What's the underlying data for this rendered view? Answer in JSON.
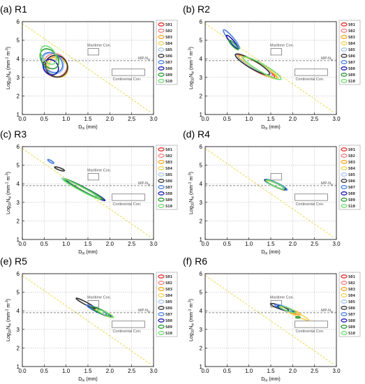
{
  "chart_data": [
    {
      "title": "(a) R1",
      "type": "scatter",
      "xlabel": "D",
      "xlabel_sub": "m",
      "xlabel_unit": "(mm)",
      "ylabel": "Log",
      "ylabel_sub": "10",
      "ylabel_n": "N",
      "ylabel_nsub": "w",
      "ylabel_unit": "(mm",
      "ylabel_exp1": "-1",
      "ylabel_unit2": " m",
      "ylabel_exp2": "-3",
      "ylabel_close": ")",
      "xlim": [
        0,
        3
      ],
      "ylim": [
        1,
        6
      ],
      "xticks": [
        "0.0",
        "0.5",
        "1.0",
        "1.5",
        "2.0",
        "2.5",
        "3.0"
      ],
      "yticks": [
        "1",
        "2",
        "3",
        "4",
        "5",
        "6"
      ],
      "grid": true,
      "legend": "right",
      "mp_line": {
        "y": 3.9,
        "label": "MP-N",
        "label_sub": "w"
      },
      "maritime": {
        "x0": 1.5,
        "x1": 1.75,
        "y0": 4.2,
        "y1": 4.55,
        "label": "Maritime Con."
      },
      "continental": {
        "x0": 2.05,
        "x1": 2.8,
        "y0": 3.1,
        "y1": 3.45,
        "label": "Continental Con."
      },
      "yellow_line": {
        "x0": 0.0,
        "y0": 5.9,
        "x1": 2.95,
        "y1": 1.1
      },
      "ellipses": [
        {
          "series": "S01",
          "cx": 0.78,
          "cy": 3.6,
          "rx": 0.24,
          "ry": 0.62,
          "angle": -55
        },
        {
          "series": "S02",
          "cx": 0.75,
          "cy": 3.65,
          "rx": 0.26,
          "ry": 0.65,
          "angle": -55
        },
        {
          "series": "S03",
          "cx": 0.8,
          "cy": 3.55,
          "rx": 0.22,
          "ry": 0.6,
          "angle": -55
        },
        {
          "series": "S04",
          "cx": 0.82,
          "cy": 3.5,
          "rx": 0.2,
          "ry": 0.55,
          "angle": -55
        },
        {
          "series": "S05",
          "cx": 0.7,
          "cy": 3.75,
          "rx": 0.22,
          "ry": 0.62,
          "angle": -50
        },
        {
          "series": "S06",
          "cx": 0.78,
          "cy": 3.6,
          "rx": 0.24,
          "ry": 0.62,
          "angle": -55
        },
        {
          "series": "S07",
          "cx": 0.68,
          "cy": 3.8,
          "rx": 0.2,
          "ry": 0.62,
          "angle": -50
        },
        {
          "series": "S08",
          "cx": 0.65,
          "cy": 3.55,
          "rx": 0.16,
          "ry": 0.45,
          "angle": -45
        },
        {
          "series": "S09",
          "cx": 0.62,
          "cy": 4.0,
          "rx": 0.18,
          "ry": 0.6,
          "angle": -40
        },
        {
          "series": "S10",
          "cx": 0.6,
          "cy": 4.2,
          "rx": 0.15,
          "ry": 0.55,
          "angle": -35
        }
      ]
    },
    {
      "title": "(b) R2",
      "type": "scatter",
      "xlabel": "D",
      "xlabel_sub": "m",
      "xlabel_unit": "(mm)",
      "ylabel": "Log",
      "ylabel_sub": "10",
      "ylabel_n": "N",
      "ylabel_nsub": "w",
      "ylabel_unit": "(mm",
      "ylabel_exp1": "-1",
      "ylabel_unit2": " m",
      "ylabel_exp2": "-3",
      "ylabel_close": ")",
      "xlim": [
        0,
        3
      ],
      "ylim": [
        1,
        6
      ],
      "xticks": [
        "0.0",
        "0.5",
        "1.0",
        "1.5",
        "2.0",
        "2.5",
        "3.0"
      ],
      "yticks": [
        "1",
        "2",
        "3",
        "4",
        "5",
        "6"
      ],
      "grid": true,
      "legend": "right",
      "mp_line": {
        "y": 3.9,
        "label": "MP-N",
        "label_sub": "w"
      },
      "maritime": {
        "x0": 1.5,
        "x1": 1.75,
        "y0": 4.2,
        "y1": 4.55,
        "label": "Maritime Con."
      },
      "continental": {
        "x0": 2.05,
        "x1": 2.8,
        "y0": 3.1,
        "y1": 3.45,
        "label": "Continental Con."
      },
      "yellow_line": {
        "x0": 0.0,
        "y0": 5.9,
        "x1": 2.95,
        "y1": 1.1
      },
      "ellipses": [
        {
          "series": "S01",
          "cx": 1.15,
          "cy": 3.6,
          "rx": 0.5,
          "ry": 0.22,
          "angle": 30
        },
        {
          "series": "S02",
          "cx": 1.12,
          "cy": 3.65,
          "rx": 0.48,
          "ry": 0.22,
          "angle": 30
        },
        {
          "series": "S03",
          "cx": 1.2,
          "cy": 3.55,
          "rx": 0.5,
          "ry": 0.2,
          "angle": 30
        },
        {
          "series": "S04",
          "cx": 1.25,
          "cy": 3.5,
          "rx": 0.48,
          "ry": 0.2,
          "angle": 30
        },
        {
          "series": "S05",
          "cx": 1.1,
          "cy": 3.7,
          "rx": 0.45,
          "ry": 0.2,
          "angle": 30
        },
        {
          "series": "S06",
          "cx": 1.08,
          "cy": 3.7,
          "rx": 0.45,
          "ry": 0.22,
          "angle": 30
        },
        {
          "series": "S07",
          "cx": 0.6,
          "cy": 5.05,
          "rx": 0.28,
          "ry": 0.13,
          "angle": 50
        },
        {
          "series": "S08",
          "cx": 0.62,
          "cy": 4.9,
          "rx": 0.2,
          "ry": 0.1,
          "angle": 50
        },
        {
          "series": "S09",
          "cx": 0.65,
          "cy": 4.75,
          "rx": 0.15,
          "ry": 0.08,
          "angle": 45
        },
        {
          "series": "S10",
          "cx": 1.3,
          "cy": 3.5,
          "rx": 0.5,
          "ry": 0.2,
          "angle": 30
        }
      ]
    },
    {
      "title": "(c) R3",
      "type": "scatter",
      "xlabel": "D",
      "xlabel_sub": "m",
      "xlabel_unit": "(mm)",
      "ylabel": "Log",
      "ylabel_sub": "10",
      "ylabel_n": "N",
      "ylabel_nsub": "w",
      "ylabel_unit": "(mm",
      "ylabel_exp1": "-1",
      "ylabel_unit2": " m",
      "ylabel_exp2": "-3",
      "ylabel_close": ")",
      "xlim": [
        0,
        3
      ],
      "ylim": [
        1,
        6
      ],
      "xticks": [
        "0.0",
        "0.5",
        "1.0",
        "1.5",
        "2.0",
        "2.5",
        "3.0"
      ],
      "yticks": [
        "1",
        "2",
        "3",
        "4",
        "5",
        "6"
      ],
      "grid": true,
      "legend": "right",
      "mp_line": {
        "y": 3.9,
        "label": "MP-N",
        "label_sub": "w"
      },
      "maritime": {
        "x0": 1.5,
        "x1": 1.75,
        "y0": 4.2,
        "y1": 4.55,
        "label": "Maritime Con."
      },
      "continental": {
        "x0": 2.05,
        "x1": 2.8,
        "y0": 3.1,
        "y1": 3.45,
        "label": "Continental Con."
      },
      "yellow_line": {
        "x0": 0.0,
        "y0": 5.9,
        "x1": 2.95,
        "y1": 1.1
      },
      "ellipses": [
        {
          "series": "S01",
          "cx": 1.4,
          "cy": 3.7,
          "rx": 0.5,
          "ry": 0.1,
          "angle": 28
        },
        {
          "series": "S02",
          "cx": 1.38,
          "cy": 3.72,
          "rx": 0.5,
          "ry": 0.11,
          "angle": 28
        },
        {
          "series": "S03",
          "cx": 1.42,
          "cy": 3.68,
          "rx": 0.48,
          "ry": 0.1,
          "angle": 28
        },
        {
          "series": "S04",
          "cx": 1.35,
          "cy": 3.75,
          "rx": 0.48,
          "ry": 0.1,
          "angle": 28
        },
        {
          "series": "S05",
          "cx": 1.3,
          "cy": 3.8,
          "rx": 0.45,
          "ry": 0.1,
          "angle": 28
        },
        {
          "series": "S06",
          "cx": 0.85,
          "cy": 4.8,
          "rx": 0.12,
          "ry": 0.06,
          "angle": 20
        },
        {
          "series": "S07",
          "cx": 0.65,
          "cy": 5.2,
          "rx": 0.08,
          "ry": 0.05,
          "angle": 30
        },
        {
          "series": "S08",
          "cx": 1.45,
          "cy": 3.65,
          "rx": 0.5,
          "ry": 0.1,
          "angle": 28
        },
        {
          "series": "S09",
          "cx": 1.4,
          "cy": 3.7,
          "rx": 0.5,
          "ry": 0.1,
          "angle": 28
        },
        {
          "series": "S10",
          "cx": 1.35,
          "cy": 3.72,
          "rx": 0.48,
          "ry": 0.1,
          "angle": 28
        }
      ]
    },
    {
      "title": "(d) R4",
      "type": "scatter",
      "xlabel": "D",
      "xlabel_sub": "m",
      "xlabel_unit": "(mm)",
      "ylabel": "Log",
      "ylabel_sub": "10",
      "ylabel_n": "N",
      "ylabel_nsub": "w",
      "ylabel_unit": "(mm",
      "ylabel_exp1": "-1",
      "ylabel_unit2": " m",
      "ylabel_exp2": "-3",
      "ylabel_close": ")",
      "xlim": [
        0,
        3
      ],
      "ylim": [
        1,
        6
      ],
      "xticks": [
        "0.0",
        "0.5",
        "1.0",
        "1.5",
        "2.0",
        "2.5",
        "3.0"
      ],
      "yticks": [
        "1",
        "2",
        "3",
        "4",
        "5",
        "6"
      ],
      "grid": true,
      "legend": "right",
      "mp_line": {
        "y": 3.9,
        "label": "MP-N",
        "label_sub": "w"
      },
      "maritime": {
        "x0": 1.5,
        "x1": 1.75,
        "y0": 4.2,
        "y1": 4.55,
        "label": ""
      },
      "continental": {
        "x0": 2.05,
        "x1": 2.8,
        "y0": 3.1,
        "y1": 3.45,
        "label": "Continental Con."
      },
      "yellow_line": {
        "x0": 0.0,
        "y0": 5.9,
        "x1": 2.95,
        "y1": 1.1
      },
      "ellipses": [
        {
          "series": "S01",
          "cx": 1.6,
          "cy": 3.95,
          "rx": 0.25,
          "ry": 0.1,
          "angle": 25
        },
        {
          "series": "S02",
          "cx": 1.62,
          "cy": 3.93,
          "rx": 0.25,
          "ry": 0.1,
          "angle": 25
        },
        {
          "series": "S03",
          "cx": 1.6,
          "cy": 3.95,
          "rx": 0.24,
          "ry": 0.1,
          "angle": 25
        },
        {
          "series": "S04",
          "cx": 1.64,
          "cy": 3.9,
          "rx": 0.24,
          "ry": 0.1,
          "angle": 25
        },
        {
          "series": "S05",
          "cx": 1.58,
          "cy": 3.97,
          "rx": 0.23,
          "ry": 0.1,
          "angle": 25
        },
        {
          "series": "S06",
          "cx": 1.6,
          "cy": 3.95,
          "rx": 0.27,
          "ry": 0.1,
          "angle": 25
        },
        {
          "series": "S07",
          "cx": 1.62,
          "cy": 3.95,
          "rx": 0.28,
          "ry": 0.11,
          "angle": 25
        },
        {
          "series": "S08",
          "cx": 1.6,
          "cy": 3.95,
          "rx": 0.25,
          "ry": 0.1,
          "angle": 25
        },
        {
          "series": "S09",
          "cx": 1.6,
          "cy": 3.96,
          "rx": 0.24,
          "ry": 0.1,
          "angle": 25
        },
        {
          "series": "S10",
          "cx": 1.6,
          "cy": 3.95,
          "rx": 0.23,
          "ry": 0.1,
          "angle": 25
        }
      ]
    },
    {
      "title": "(e) R5",
      "type": "scatter",
      "xlabel": "D",
      "xlabel_sub": "m",
      "xlabel_unit": "(mm)",
      "ylabel": "Log",
      "ylabel_sub": "10",
      "ylabel_n": "N",
      "ylabel_nsub": "w",
      "ylabel_unit": "(mm",
      "ylabel_exp1": "-1",
      "ylabel_unit2": " m",
      "ylabel_exp2": "-3",
      "ylabel_close": ")",
      "xlim": [
        0,
        3
      ],
      "ylim": [
        1,
        6
      ],
      "xticks": [
        "0.0",
        "0.5",
        "1.0",
        "1.5",
        "2.0",
        "2.5",
        "3.0"
      ],
      "yticks": [
        "1",
        "2",
        "3",
        "4",
        "5",
        "6"
      ],
      "grid": true,
      "legend": "right",
      "mp_line": {
        "y": 3.9,
        "label": "MP-N",
        "label_sub": "w"
      },
      "maritime": {
        "x0": 1.5,
        "x1": 1.75,
        "y0": 4.2,
        "y1": 4.55,
        "label": "Maritime Con."
      },
      "continental": {
        "x0": 2.05,
        "x1": 2.8,
        "y0": 3.1,
        "y1": 3.45,
        "label": "Continental Con."
      },
      "yellow_line": {
        "x0": 0.0,
        "y0": 5.9,
        "x1": 2.95,
        "y1": 1.1
      },
      "ellipses": [
        {
          "series": "S01",
          "cx": 1.8,
          "cy": 3.95,
          "rx": 0.25,
          "ry": 0.1,
          "angle": 25
        },
        {
          "series": "S02",
          "cx": 1.82,
          "cy": 3.93,
          "rx": 0.25,
          "ry": 0.1,
          "angle": 25
        },
        {
          "series": "S03",
          "cx": 1.85,
          "cy": 3.9,
          "rx": 0.24,
          "ry": 0.1,
          "angle": 25
        },
        {
          "series": "S04",
          "cx": 1.88,
          "cy": 3.88,
          "rx": 0.22,
          "ry": 0.09,
          "angle": 25
        },
        {
          "series": "S05",
          "cx": 1.75,
          "cy": 4.0,
          "rx": 0.2,
          "ry": 0.09,
          "angle": 25
        },
        {
          "series": "S06",
          "cx": 1.45,
          "cy": 4.4,
          "rx": 0.25,
          "ry": 0.07,
          "angle": 28
        },
        {
          "series": "S07",
          "cx": 1.7,
          "cy": 4.05,
          "rx": 0.25,
          "ry": 0.1,
          "angle": 25
        },
        {
          "series": "S08",
          "cx": 1.8,
          "cy": 3.95,
          "rx": 0.25,
          "ry": 0.1,
          "angle": 25
        },
        {
          "series": "S09",
          "cx": 1.78,
          "cy": 3.98,
          "rx": 0.22,
          "ry": 0.1,
          "angle": 25
        },
        {
          "series": "S10",
          "cx": 1.9,
          "cy": 3.85,
          "rx": 0.2,
          "ry": 0.08,
          "angle": 25
        }
      ]
    },
    {
      "title": "(f) R6",
      "type": "scatter",
      "xlabel": "D",
      "xlabel_sub": "m",
      "xlabel_unit": "(mm)",
      "ylabel": "Log",
      "ylabel_sub": "10",
      "ylabel_n": "N",
      "ylabel_nsub": "w",
      "ylabel_unit": "(mm",
      "ylabel_exp1": "-1",
      "ylabel_unit2": " m",
      "ylabel_exp2": "-3",
      "ylabel_close": ")",
      "xlim": [
        0,
        3
      ],
      "ylim": [
        1,
        6
      ],
      "xticks": [
        "0.0",
        "0.5",
        "1.0",
        "1.5",
        "2.0",
        "2.5",
        "3.0"
      ],
      "yticks": [
        "1",
        "2",
        "3",
        "4",
        "5",
        "6"
      ],
      "grid": true,
      "legend": "right",
      "mp_line": {
        "y": 3.9,
        "label": "MP-N",
        "label_sub": "w"
      },
      "maritime": {
        "x0": 1.5,
        "x1": 1.75,
        "y0": 4.2,
        "y1": 4.55,
        "label": "Maritime Con."
      },
      "continental": {
        "x0": 2.05,
        "x1": 2.8,
        "y0": 3.1,
        "y1": 3.45,
        "label": "Continental Con."
      },
      "yellow_line": {
        "x0": 0.0,
        "y0": 5.9,
        "x1": 2.95,
        "y1": 1.1
      },
      "ellipses": [
        {
          "series": "S01",
          "cx": 1.85,
          "cy": 4.1,
          "rx": 0.22,
          "ry": 0.09,
          "angle": 20
        },
        {
          "series": "S02",
          "cx": 1.88,
          "cy": 4.05,
          "rx": 0.22,
          "ry": 0.09,
          "angle": 20
        },
        {
          "series": "S03",
          "cx": 1.95,
          "cy": 4.0,
          "rx": 0.25,
          "ry": 0.09,
          "angle": 20
        },
        {
          "series": "S04",
          "cx": 2.05,
          "cy": 3.85,
          "rx": 0.35,
          "ry": 0.09,
          "angle": 25
        },
        {
          "series": "S05",
          "cx": 1.8,
          "cy": 4.12,
          "rx": 0.2,
          "ry": 0.08,
          "angle": 20
        },
        {
          "series": "S06",
          "cx": 1.7,
          "cy": 4.2,
          "rx": 0.22,
          "ry": 0.09,
          "angle": 20
        },
        {
          "series": "S07",
          "cx": 1.8,
          "cy": 4.15,
          "rx": 0.22,
          "ry": 0.09,
          "angle": 20
        },
        {
          "series": "S08",
          "cx": 1.85,
          "cy": 4.1,
          "rx": 0.2,
          "ry": 0.08,
          "angle": 20
        },
        {
          "series": "S09",
          "cx": 2.12,
          "cy": 3.65,
          "rx": 0.05,
          "ry": 0.04,
          "angle": 0
        },
        {
          "series": "S10",
          "cx": 1.88,
          "cy": 4.08,
          "rx": 0.2,
          "ry": 0.08,
          "angle": 20
        }
      ]
    }
  ],
  "legend": {
    "series": [
      {
        "name": "S01",
        "color": "#e8312c"
      },
      {
        "name": "S02",
        "color": "#f08080"
      },
      {
        "name": "S03",
        "color": "#f5a623"
      },
      {
        "name": "S04",
        "color": "#f2d35c"
      },
      {
        "name": "S05",
        "color": "#a8c8ec"
      },
      {
        "name": "S06",
        "color": "#333333"
      },
      {
        "name": "S07",
        "color": "#4a7fe0"
      },
      {
        "name": "S08",
        "color": "#1a1ab0"
      },
      {
        "name": "S09",
        "color": "#2a9a3a"
      },
      {
        "name": "S10",
        "color": "#6fdc6f"
      }
    ]
  },
  "colors": {
    "grid": "#bbbbbb",
    "yellow_line": "#ecdf6a",
    "mp_line": "#666666",
    "box": "#666666"
  }
}
